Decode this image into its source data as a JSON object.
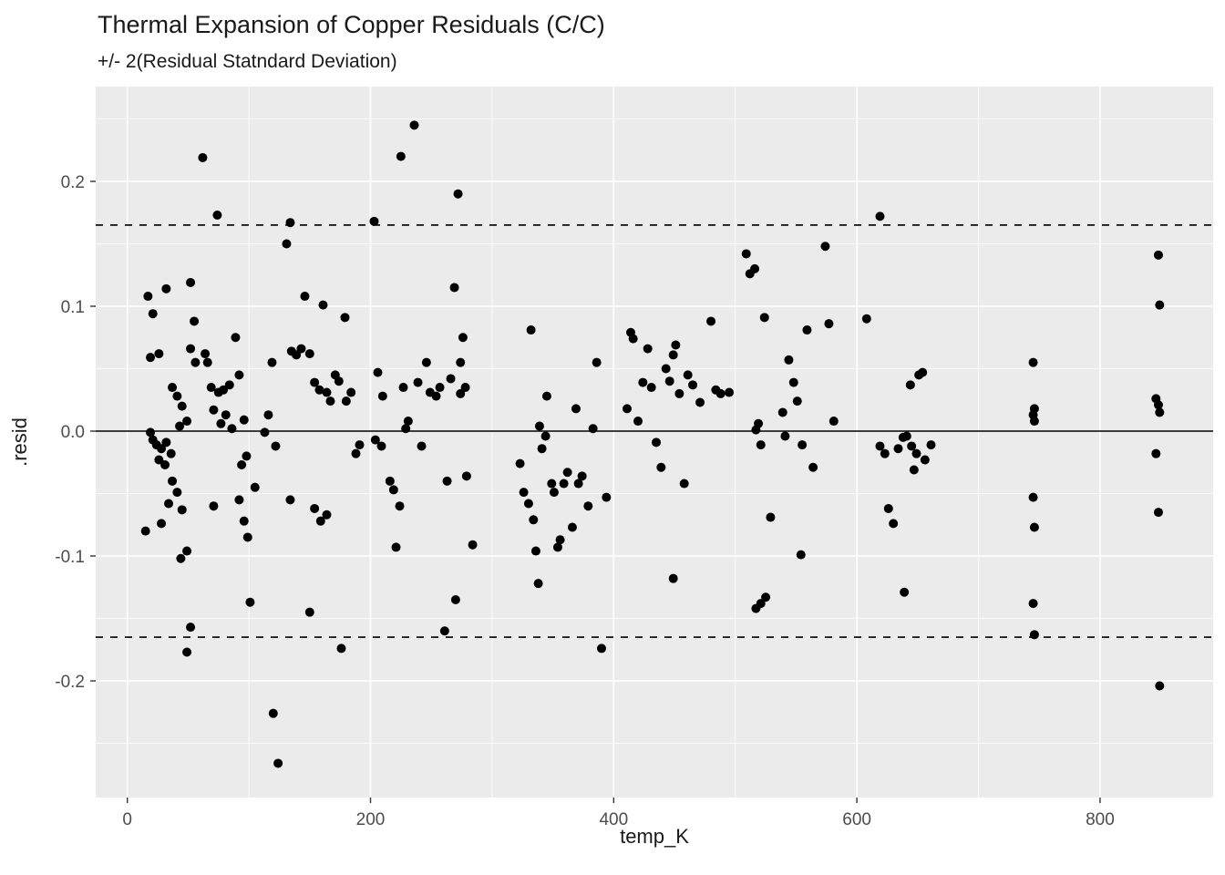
{
  "chart_data": {
    "type": "scatter",
    "title": "Thermal Expansion of Copper Residuals (C/C)",
    "subtitle": "+/- 2(Residual Statndard Deviation)",
    "xlabel": "temp_K",
    "ylabel": ".resid",
    "xlim": [
      -26,
      893
    ],
    "ylim": [
      -0.2934,
      0.2759
    ],
    "x_ticks": [
      0,
      200,
      400,
      600,
      800
    ],
    "x_minor_ticks": [
      100,
      300,
      500,
      700
    ],
    "y_ticks": [
      -0.2,
      -0.1,
      0.0,
      0.1,
      0.2
    ],
    "y_tick_labels": [
      "-0.2",
      "-0.1",
      "0.0",
      "0.1",
      "0.2"
    ],
    "y_minor_ticks": [
      -0.25,
      -0.15,
      -0.05,
      0.05,
      0.15,
      0.25
    ],
    "grid": true,
    "legend": "none",
    "reference_lines": [
      {
        "y": 0,
        "style": "solid",
        "label": "zero-line"
      },
      {
        "y": 0.165,
        "style": "dashed",
        "label": "upper-2sd-line"
      },
      {
        "y": -0.165,
        "style": "dashed",
        "label": "lower-2sd-line"
      }
    ],
    "colors": {
      "panel_background": "#EBEBEB",
      "grid_major": "#FFFFFF",
      "grid_minor": "#FFFFFF",
      "point": "#000000",
      "tick_text": "#4D4D4D",
      "tick_mark": "#333333",
      "title_text": "#1A1A1A",
      "reference_line": "#000000"
    },
    "points": [
      [
        17,
        0.108
      ],
      [
        32,
        0.114
      ],
      [
        21,
        0.094
      ],
      [
        52,
        0.119
      ],
      [
        55,
        0.088
      ],
      [
        19,
        0.059
      ],
      [
        26,
        0.062
      ],
      [
        52,
        0.066
      ],
      [
        56,
        0.055
      ],
      [
        37,
        0.035
      ],
      [
        41,
        0.028
      ],
      [
        45,
        0.02
      ],
      [
        49,
        0.008
      ],
      [
        43,
        0.004
      ],
      [
        19,
        -0.001
      ],
      [
        21,
        -0.007
      ],
      [
        24,
        -0.011
      ],
      [
        28,
        -0.014
      ],
      [
        32,
        -0.009
      ],
      [
        36,
        -0.018
      ],
      [
        26,
        -0.023
      ],
      [
        31,
        -0.027
      ],
      [
        37,
        -0.04
      ],
      [
        41,
        -0.049
      ],
      [
        34,
        -0.058
      ],
      [
        45,
        -0.063
      ],
      [
        28,
        -0.074
      ],
      [
        15,
        -0.08
      ],
      [
        49,
        -0.096
      ],
      [
        44,
        -0.102
      ],
      [
        52,
        -0.157
      ],
      [
        49,
        -0.177
      ],
      [
        62,
        0.219
      ],
      [
        74,
        0.173
      ],
      [
        64,
        0.062
      ],
      [
        66,
        0.055
      ],
      [
        69,
        0.035
      ],
      [
        75,
        0.031
      ],
      [
        79,
        0.033
      ],
      [
        84,
        0.037
      ],
      [
        71,
        0.017
      ],
      [
        81,
        0.013
      ],
      [
        86,
        0.002
      ],
      [
        77,
        0.006
      ],
      [
        89,
        0.075
      ],
      [
        92,
        0.045
      ],
      [
        96,
        0.009
      ],
      [
        71,
        -0.06
      ],
      [
        92,
        -0.055
      ],
      [
        96,
        -0.072
      ],
      [
        99,
        -0.085
      ],
      [
        94,
        -0.027
      ],
      [
        98,
        -0.02
      ],
      [
        105,
        -0.045
      ],
      [
        101,
        -0.137
      ],
      [
        113,
        -0.001
      ],
      [
        116,
        0.013
      ],
      [
        119,
        0.055
      ],
      [
        120,
        -0.226
      ],
      [
        124,
        -0.266
      ],
      [
        122,
        -0.012
      ],
      [
        134,
        0.167
      ],
      [
        131,
        0.15
      ],
      [
        135,
        0.064
      ],
      [
        139,
        0.061
      ],
      [
        143,
        0.066
      ],
      [
        146,
        0.108
      ],
      [
        150,
        0.062
      ],
      [
        154,
        0.039
      ],
      [
        158,
        0.033
      ],
      [
        161,
        0.101
      ],
      [
        164,
        0.031
      ],
      [
        167,
        0.024
      ],
      [
        171,
        0.045
      ],
      [
        174,
        0.04
      ],
      [
        179,
        0.091
      ],
      [
        180,
        0.024
      ],
      [
        184,
        0.031
      ],
      [
        134,
        -0.055
      ],
      [
        154,
        -0.062
      ],
      [
        159,
        -0.072
      ],
      [
        164,
        -0.067
      ],
      [
        150,
        -0.145
      ],
      [
        176,
        -0.174
      ],
      [
        188,
        -0.018
      ],
      [
        191,
        -0.011
      ],
      [
        203,
        0.168
      ],
      [
        206,
        0.047
      ],
      [
        209,
        -0.012
      ],
      [
        204,
        -0.007
      ],
      [
        210,
        0.028
      ],
      [
        216,
        -0.04
      ],
      [
        219,
        -0.047
      ],
      [
        224,
        -0.06
      ],
      [
        221,
        -0.093
      ],
      [
        225,
        0.22
      ],
      [
        227,
        0.035
      ],
      [
        229,
        0.002
      ],
      [
        231,
        0.008
      ],
      [
        236,
        0.245
      ],
      [
        239,
        0.039
      ],
      [
        242,
        -0.012
      ],
      [
        246,
        0.055
      ],
      [
        249,
        0.031
      ],
      [
        254,
        0.028
      ],
      [
        257,
        0.035
      ],
      [
        261,
        -0.16
      ],
      [
        263,
        -0.04
      ],
      [
        266,
        0.042
      ],
      [
        269,
        0.115
      ],
      [
        272,
        0.19
      ],
      [
        274,
        0.055
      ],
      [
        276,
        0.075
      ],
      [
        278,
        0.035
      ],
      [
        274,
        0.03
      ],
      [
        270,
        -0.135
      ],
      [
        279,
        -0.036
      ],
      [
        284,
        -0.091
      ],
      [
        332,
        0.081
      ],
      [
        323,
        -0.026
      ],
      [
        326,
        -0.049
      ],
      [
        330,
        -0.058
      ],
      [
        334,
        -0.071
      ],
      [
        336,
        -0.096
      ],
      [
        338,
        -0.122
      ],
      [
        339,
        0.004
      ],
      [
        341,
        -0.014
      ],
      [
        344,
        -0.004
      ],
      [
        345,
        0.028
      ],
      [
        349,
        -0.042
      ],
      [
        351,
        -0.049
      ],
      [
        354,
        -0.093
      ],
      [
        356,
        -0.087
      ],
      [
        359,
        -0.042
      ],
      [
        362,
        -0.033
      ],
      [
        366,
        -0.077
      ],
      [
        369,
        0.018
      ],
      [
        371,
        -0.042
      ],
      [
        374,
        -0.036
      ],
      [
        379,
        -0.06
      ],
      [
        383,
        0.002
      ],
      [
        386,
        0.055
      ],
      [
        390,
        -0.174
      ],
      [
        394,
        -0.053
      ],
      [
        411,
        0.018
      ],
      [
        414,
        0.079
      ],
      [
        416,
        0.074
      ],
      [
        420,
        0.008
      ],
      [
        424,
        0.039
      ],
      [
        428,
        0.066
      ],
      [
        431,
        0.035
      ],
      [
        435,
        -0.009
      ],
      [
        439,
        -0.029
      ],
      [
        443,
        0.05
      ],
      [
        446,
        0.04
      ],
      [
        449,
        0.061
      ],
      [
        451,
        0.069
      ],
      [
        449,
        -0.118
      ],
      [
        454,
        0.03
      ],
      [
        458,
        -0.042
      ],
      [
        461,
        0.045
      ],
      [
        465,
        0.037
      ],
      [
        471,
        0.023
      ],
      [
        480,
        0.088
      ],
      [
        484,
        0.033
      ],
      [
        488,
        0.03
      ],
      [
        495,
        0.031
      ],
      [
        509,
        0.142
      ],
      [
        512,
        0.126
      ],
      [
        516,
        0.13
      ],
      [
        517,
        0.001
      ],
      [
        519,
        0.006
      ],
      [
        521,
        -0.011
      ],
      [
        524,
        0.091
      ],
      [
        525,
        -0.133
      ],
      [
        521,
        -0.138
      ],
      [
        517,
        -0.142
      ],
      [
        529,
        -0.069
      ],
      [
        539,
        0.015
      ],
      [
        541,
        -0.004
      ],
      [
        544,
        0.057
      ],
      [
        548,
        0.039
      ],
      [
        551,
        0.024
      ],
      [
        554,
        -0.099
      ],
      [
        555,
        -0.011
      ],
      [
        559,
        0.081
      ],
      [
        564,
        -0.029
      ],
      [
        574,
        0.148
      ],
      [
        577,
        0.086
      ],
      [
        581,
        0.008
      ],
      [
        608,
        0.09
      ],
      [
        619,
        0.172
      ],
      [
        619,
        -0.012
      ],
      [
        623,
        -0.018
      ],
      [
        626,
        -0.062
      ],
      [
        630,
        -0.074
      ],
      [
        634,
        -0.014
      ],
      [
        638,
        -0.005
      ],
      [
        639,
        -0.129
      ],
      [
        641,
        -0.004
      ],
      [
        644,
        0.037
      ],
      [
        645,
        -0.012
      ],
      [
        647,
        -0.031
      ],
      [
        649,
        -0.018
      ],
      [
        651,
        0.045
      ],
      [
        654,
        0.047
      ],
      [
        656,
        -0.023
      ],
      [
        661,
        -0.011
      ],
      [
        745,
        0.055
      ],
      [
        746,
        0.018
      ],
      [
        745,
        0.013
      ],
      [
        746,
        0.008
      ],
      [
        745,
        -0.053
      ],
      [
        746,
        -0.077
      ],
      [
        745,
        -0.138
      ],
      [
        746,
        -0.163
      ],
      [
        848,
        0.141
      ],
      [
        849,
        0.101
      ],
      [
        846,
        0.026
      ],
      [
        848,
        0.021
      ],
      [
        849,
        0.015
      ],
      [
        846,
        -0.018
      ],
      [
        848,
        -0.065
      ],
      [
        849,
        -0.204
      ]
    ]
  }
}
